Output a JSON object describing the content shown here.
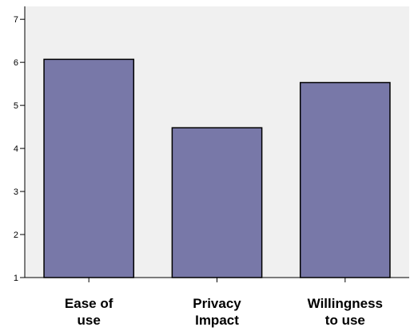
{
  "chart_data": {
    "type": "bar",
    "categories": [
      "Ease of use",
      "Privacy Impact",
      "Willingness to use"
    ],
    "category_lines": [
      [
        "Ease of",
        "use"
      ],
      [
        "Privacy",
        "Impact"
      ],
      [
        "Willingness",
        "to use"
      ]
    ],
    "values": [
      6.07,
      4.48,
      5.53
    ],
    "ylim": [
      1,
      7.3
    ],
    "yticks": [
      1,
      2,
      3,
      4,
      5,
      6,
      7
    ],
    "title": "",
    "xlabel": "",
    "ylabel": "",
    "grid": false,
    "legend": "none",
    "colors": {
      "bar_fill": "#7878a8",
      "bar_stroke": "#000000",
      "plot_background": "#f0f0f0",
      "axis": "#000000"
    }
  }
}
